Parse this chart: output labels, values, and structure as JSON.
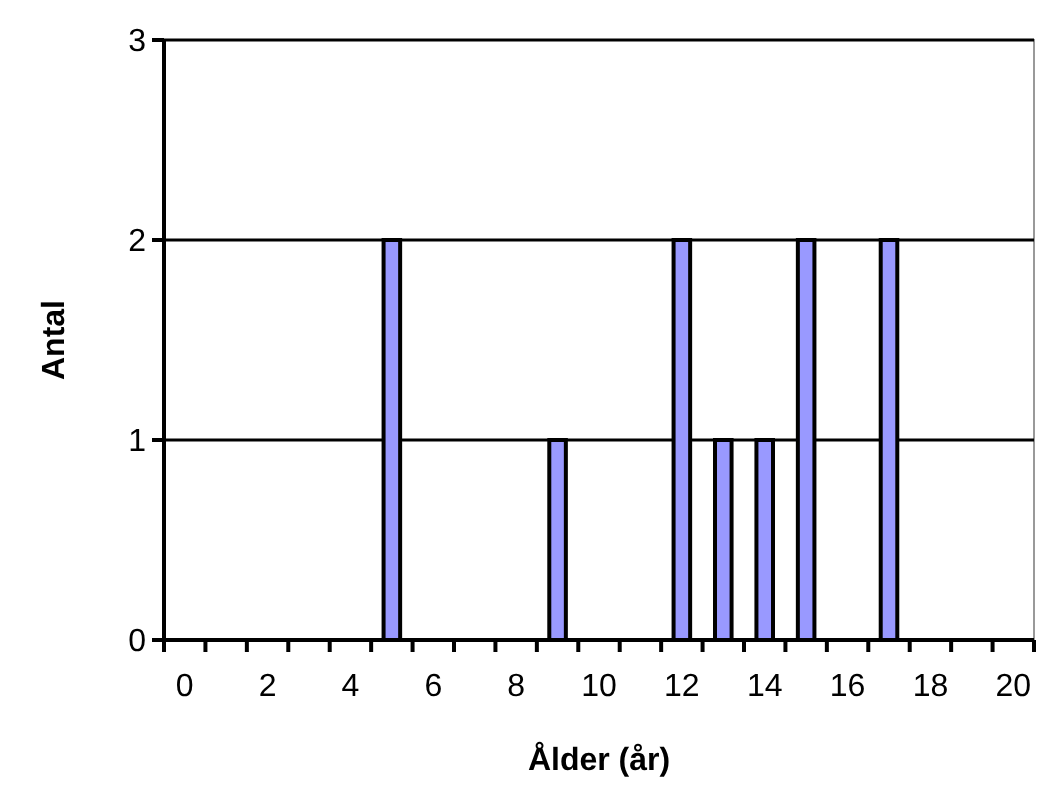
{
  "chart_data": {
    "type": "bar",
    "xlabel": "Ålder (år)",
    "ylabel": "Antal",
    "categories": [
      "0",
      null,
      "2",
      null,
      "4",
      null,
      "6",
      null,
      "8",
      null,
      "10",
      null,
      "12",
      null,
      "14",
      null,
      "16",
      null,
      "18",
      null,
      "20"
    ],
    "values": [
      0,
      0,
      0,
      0,
      0,
      2,
      0,
      0,
      0,
      1,
      0,
      0,
      2,
      1,
      1,
      2,
      0,
      2,
      0,
      0,
      0
    ],
    "color": "#9999ff",
    "ylim": [
      0,
      3
    ],
    "yticks": [
      0,
      1,
      2,
      3
    ],
    "grid": "y"
  }
}
